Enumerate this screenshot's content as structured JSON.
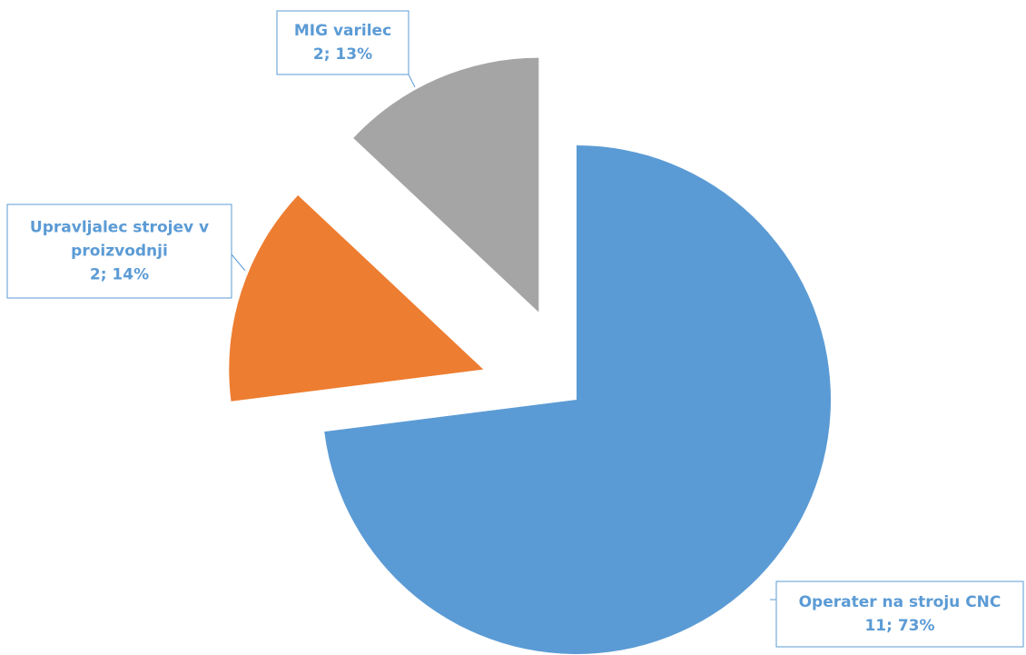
{
  "chart_data": {
    "type": "pie",
    "categories": [
      [
        "Operater na stroju CNC"
      ],
      [
        "Upravljalec strojev v",
        "proizvodnji"
      ],
      [
        "MIG varilec"
      ]
    ],
    "values": [
      73,
      14,
      13
    ],
    "counts": [
      11,
      2,
      2
    ],
    "value_labels": [
      "11; 73%",
      "2; 14%",
      "2; 13%"
    ],
    "colors": [
      "#5b9bd5",
      "#ed7d31",
      "#a5a5a5"
    ]
  }
}
